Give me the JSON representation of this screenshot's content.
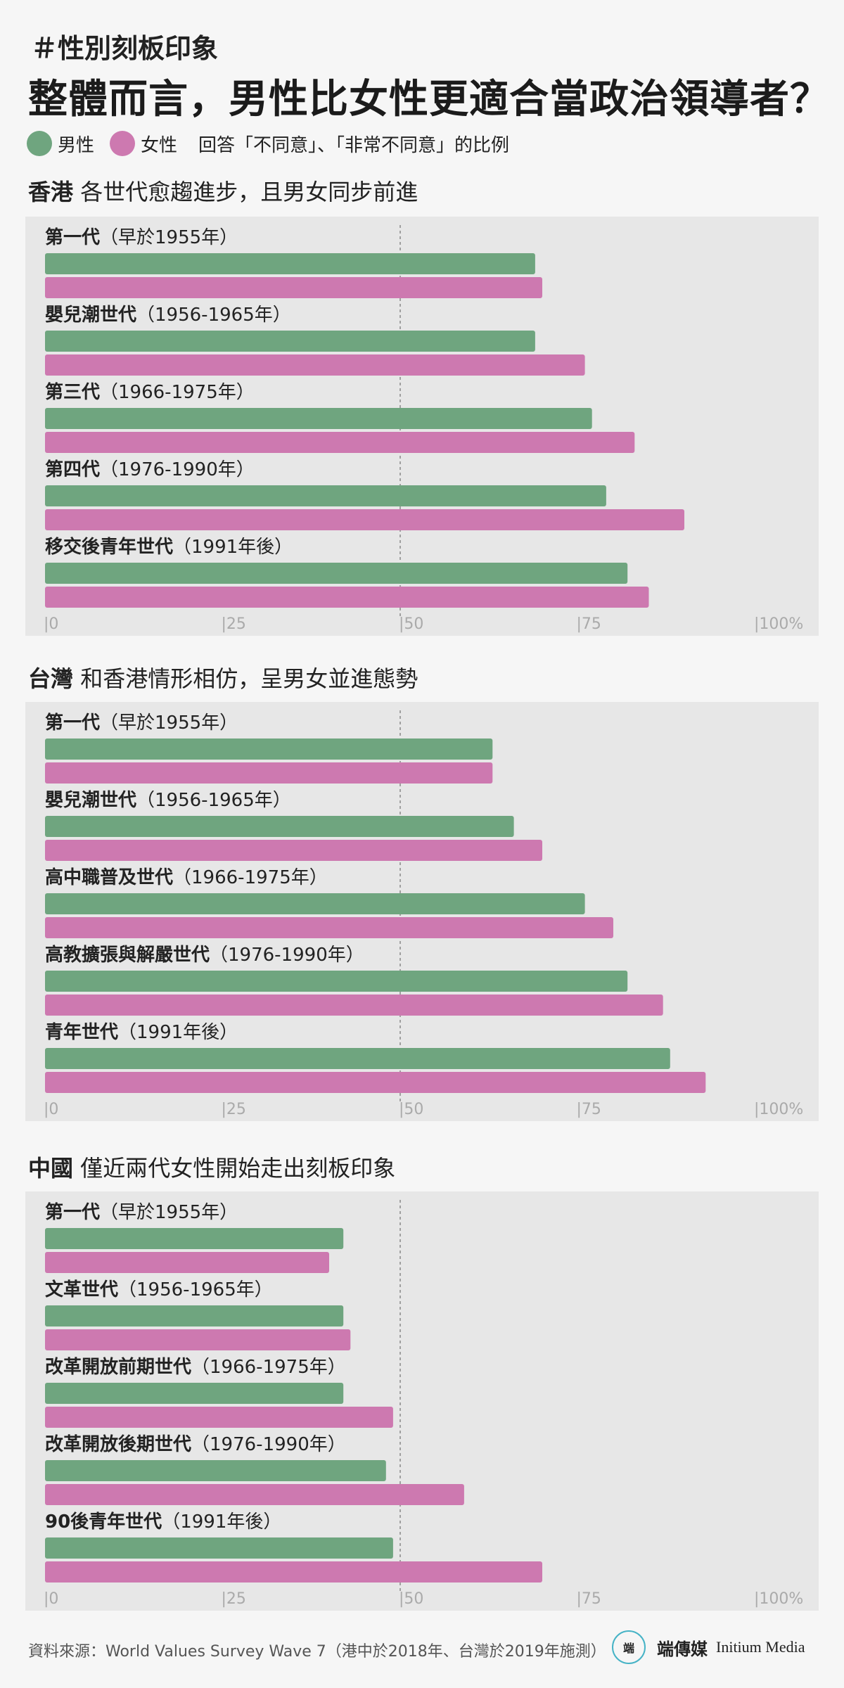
{
  "tag": "＃性別刻板印象",
  "headline": "整體而言，男性比女性更適合當政治領導者？",
  "legend": {
    "male": "男性",
    "female": "女性",
    "note": "回答「不同意」、「非常不同意」的比例"
  },
  "colors": {
    "male": "#6fa57f",
    "female": "#cd79b0",
    "panel_bg": "#e7e7e7",
    "ref_line": "#888888",
    "axis_text": "#aaaaaa"
  },
  "axis": {
    "ticks": [
      0,
      25,
      50,
      75,
      100
    ],
    "tick_labels": [
      "|0",
      "|25",
      "|50",
      "|75",
      "|100%"
    ],
    "ref_value": 50
  },
  "sections": [
    {
      "region": "香港",
      "subtitle": "各世代愈趨進步，且男女同步前進"
    },
    {
      "region": "台灣",
      "subtitle": "和香港情形相仿，呈男女並進態勢"
    },
    {
      "region": "中國",
      "subtitle": "僅近兩代女性開始走出刻板印象"
    }
  ],
  "chart_data": [
    {
      "type": "bar",
      "orientation": "horizontal",
      "title": "香港 各世代愈趨進步，且男女同步前進",
      "xlim": [
        0,
        100
      ],
      "categories": [
        {
          "name": "第一代",
          "period": "（早於1955年）"
        },
        {
          "name": "嬰兒潮世代",
          "period": "（1956-1965年）"
        },
        {
          "name": "第三代",
          "period": "（1966-1975年）"
        },
        {
          "name": "第四代",
          "period": "（1976-1990年）"
        },
        {
          "name": "移交後青年世代",
          "period": "（1991年後）"
        }
      ],
      "series": [
        {
          "name": "男性",
          "values": [
            69,
            69,
            77,
            79,
            82
          ]
        },
        {
          "name": "女性",
          "values": [
            70,
            76,
            83,
            90,
            85
          ]
        }
      ]
    },
    {
      "type": "bar",
      "orientation": "horizontal",
      "title": "台灣 和香港情形相仿，呈男女並進態勢",
      "xlim": [
        0,
        100
      ],
      "categories": [
        {
          "name": "第一代",
          "period": "（早於1955年）"
        },
        {
          "name": "嬰兒潮世代",
          "period": "（1956-1965年）"
        },
        {
          "name": "高中職普及世代",
          "period": "（1966-1975年）"
        },
        {
          "name": "高教擴張與解嚴世代",
          "period": "（1976-1990年）"
        },
        {
          "name": "青年世代",
          "period": "（1991年後）"
        }
      ],
      "series": [
        {
          "name": "男性",
          "values": [
            63,
            66,
            76,
            82,
            88
          ]
        },
        {
          "name": "女性",
          "values": [
            63,
            70,
            80,
            87,
            93
          ]
        }
      ]
    },
    {
      "type": "bar",
      "orientation": "horizontal",
      "title": "中國 僅近兩代女性開始走出刻板印象",
      "xlim": [
        0,
        100
      ],
      "categories": [
        {
          "name": "第一代",
          "period": "（早於1955年）"
        },
        {
          "name": "文革世代",
          "period": "（1956-1965年）"
        },
        {
          "name": "改革開放前期世代",
          "period": "（1966-1975年）"
        },
        {
          "name": "改革開放後期世代",
          "period": "（1976-1990年）"
        },
        {
          "name": "90後青年世代",
          "period": "（1991年後）"
        }
      ],
      "series": [
        {
          "name": "男性",
          "values": [
            42,
            42,
            42,
            48,
            49
          ]
        },
        {
          "name": "女性",
          "values": [
            40,
            43,
            49,
            59,
            70
          ]
        }
      ]
    }
  ],
  "footer": "資料來源：World Values Survey Wave 7（港中於2018年、台灣於2019年施測）",
  "brand": {
    "logo_text": "端",
    "cn": "端傳媒",
    "en": "Initium Media"
  }
}
